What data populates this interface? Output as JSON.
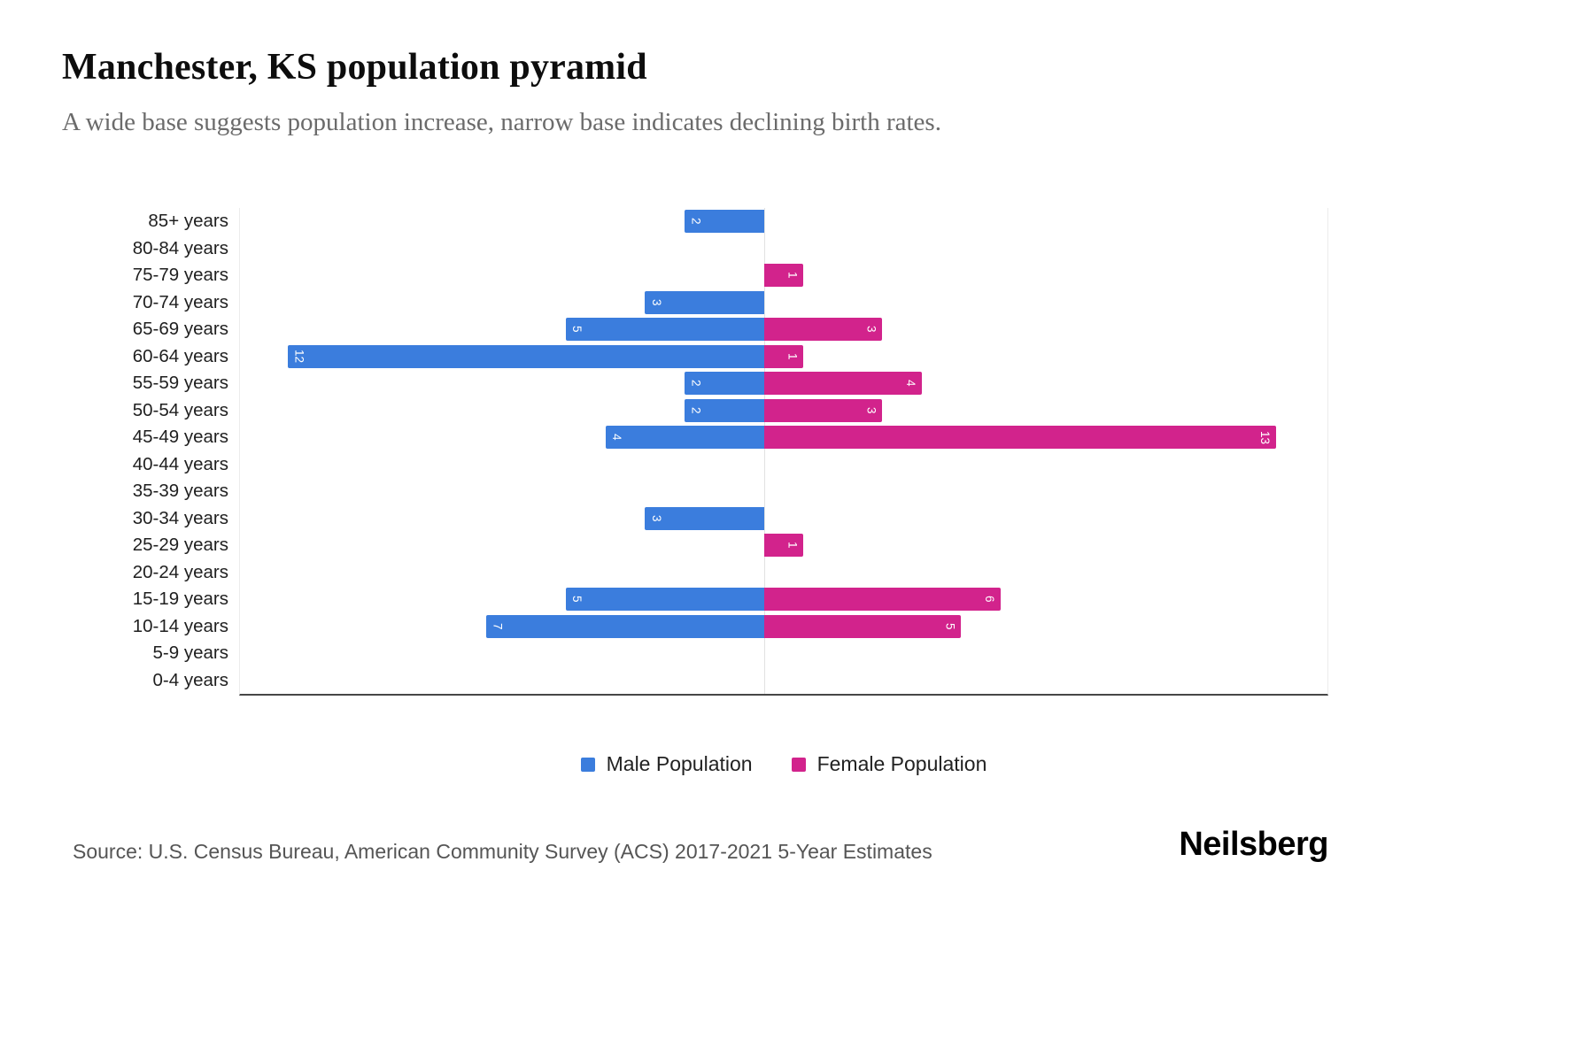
{
  "header": {
    "title": "Manchester, KS population pyramid",
    "subtitle": "A wide base suggests population increase, narrow base indicates declining birth rates."
  },
  "chart_data": {
    "type": "bar",
    "variant": "population-pyramid",
    "orientation": "horizontal",
    "categories": [
      "85+ years",
      "80-84 years",
      "75-79 years",
      "70-74 years",
      "65-69 years",
      "60-64 years",
      "55-59 years",
      "50-54 years",
      "45-49 years",
      "40-44 years",
      "35-39 years",
      "30-34 years",
      "25-29 years",
      "20-24 years",
      "15-19 years",
      "10-14 years",
      "5-9 years",
      "0-4 years"
    ],
    "series": [
      {
        "name": "Male Population",
        "color": "#3b7ddd",
        "side": "left",
        "values": [
          2,
          0,
          0,
          3,
          5,
          12,
          2,
          2,
          4,
          0,
          0,
          3,
          0,
          0,
          5,
          7,
          0,
          0
        ]
      },
      {
        "name": "Female Population",
        "color": "#d2238c",
        "side": "right",
        "values": [
          0,
          0,
          1,
          0,
          3,
          1,
          4,
          3,
          13,
          0,
          0,
          0,
          1,
          0,
          6,
          5,
          0,
          0
        ]
      }
    ],
    "value_labels": "inside-bar-end-rotated",
    "grid": "edges-and-center-only",
    "legend_position": "bottom-center"
  },
  "footer": {
    "source": "Source: U.S. Census Bureau, American Community Survey (ACS) 2017-2021 5-Year Estimates",
    "brand": "Neilsberg"
  }
}
